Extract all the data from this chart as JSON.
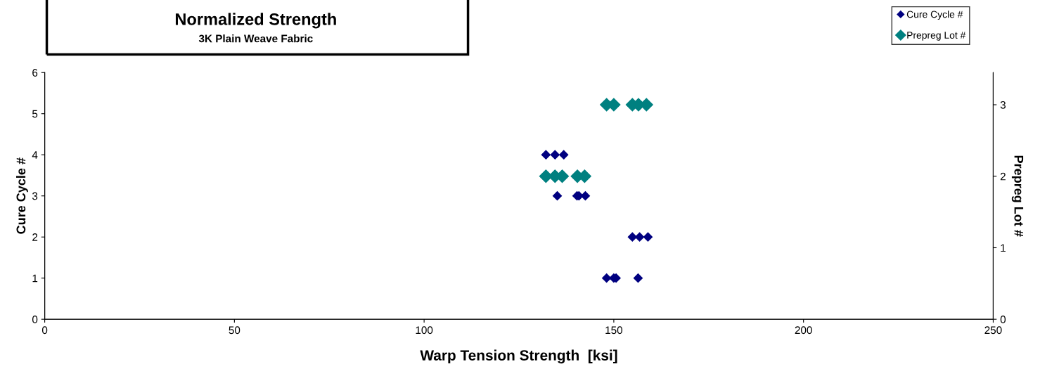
{
  "chart_data": {
    "type": "scatter",
    "title": "Normalized Strength",
    "subtitle": "3K Plain Weave Fabric",
    "xlabel": "Warp Tension Strength  [ksi]",
    "ylabel": "Cure Cycle #",
    "y2label": "Prepreg Lot #",
    "xlim": [
      0,
      250
    ],
    "xticks": [
      0,
      50,
      100,
      150,
      200,
      250
    ],
    "ylim": [
      0,
      6
    ],
    "yticks": [
      0,
      1,
      2,
      3,
      4,
      5,
      6
    ],
    "y2lim": [
      0,
      3.45
    ],
    "y2ticks": [
      0,
      1,
      2,
      3
    ],
    "marker": "diamond",
    "grid": false,
    "legend": "top right",
    "series": [
      {
        "name": "Cure Cycle #",
        "color": "#000080",
        "x": [
          132.1,
          134.5,
          136.8,
          135.1,
          140.3,
          140.8,
          142.5,
          154.9,
          156.8,
          159.0,
          148.1,
          150.0,
          150.6,
          156.4
        ],
        "values": [
          4,
          4,
          4,
          3,
          3,
          3,
          3,
          2,
          2,
          2,
          1,
          1,
          1,
          1
        ]
      },
      {
        "name": "Prepreg Lot #",
        "color": "#008080",
        "axis": "y2",
        "x": [
          148.1,
          150.0,
          154.9,
          156.5,
          158.6,
          132.1,
          134.5,
          136.4,
          140.4,
          142.3
        ],
        "values": [
          3,
          3,
          3,
          3,
          3,
          2,
          2,
          2,
          2,
          2
        ]
      }
    ]
  }
}
